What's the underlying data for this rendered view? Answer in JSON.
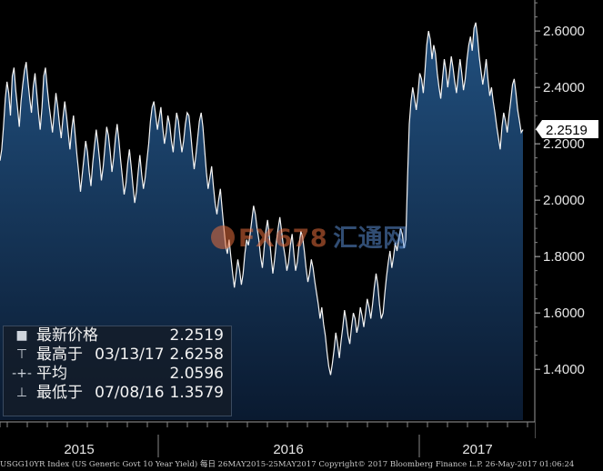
{
  "chart_data": {
    "type": "area",
    "title": "",
    "xlabel": "",
    "ylabel": "",
    "x_ticks": [
      "2015",
      "2016",
      "2017"
    ],
    "y_ticks": [
      "1.4000",
      "1.6000",
      "1.8000",
      "2.0000",
      "2.2000",
      "2.4000",
      "2.6000"
    ],
    "ylim": [
      1.22,
      2.71
    ],
    "last_value": "2.2519",
    "series": [
      {
        "values": [
          2.14,
          2.18,
          2.26,
          2.36,
          2.42,
          2.38,
          2.3,
          2.44,
          2.47,
          2.39,
          2.33,
          2.26,
          2.35,
          2.41,
          2.46,
          2.49,
          2.42,
          2.36,
          2.31,
          2.4,
          2.45,
          2.38,
          2.31,
          2.25,
          2.33,
          2.44,
          2.47,
          2.4,
          2.34,
          2.29,
          2.24,
          2.31,
          2.38,
          2.33,
          2.27,
          2.22,
          2.29,
          2.35,
          2.3,
          2.24,
          2.18,
          2.25,
          2.3,
          2.23,
          2.16,
          2.1,
          2.03,
          2.09,
          2.15,
          2.21,
          2.17,
          2.1,
          2.05,
          2.13,
          2.19,
          2.25,
          2.2,
          2.14,
          2.07,
          2.12,
          2.19,
          2.26,
          2.23,
          2.17,
          2.1,
          2.15,
          2.22,
          2.27,
          2.21,
          2.14,
          2.08,
          2.02,
          2.06,
          2.13,
          2.18,
          2.12,
          2.05,
          1.99,
          2.03,
          2.1,
          2.16,
          2.09,
          2.04,
          2.08,
          2.14,
          2.2,
          2.28,
          2.33,
          2.35,
          2.3,
          2.25,
          2.29,
          2.33,
          2.26,
          2.2,
          2.24,
          2.3,
          2.27,
          2.21,
          2.17,
          2.25,
          2.31,
          2.28,
          2.22,
          2.17,
          2.21,
          2.27,
          2.31,
          2.3,
          2.24,
          2.17,
          2.11,
          2.16,
          2.22,
          2.28,
          2.31,
          2.26,
          2.18,
          2.1,
          2.04,
          2.08,
          2.12,
          2.05,
          1.99,
          1.95,
          2.0,
          2.04,
          1.97,
          1.9,
          1.84,
          1.81,
          1.86,
          1.8,
          1.74,
          1.69,
          1.74,
          1.79,
          1.75,
          1.7,
          1.74,
          1.81,
          1.86,
          1.84,
          1.88,
          1.93,
          1.98,
          1.95,
          1.9,
          1.86,
          1.8,
          1.76,
          1.83,
          1.89,
          1.93,
          1.87,
          1.8,
          1.74,
          1.79,
          1.85,
          1.9,
          1.94,
          1.89,
          1.84,
          1.8,
          1.75,
          1.78,
          1.84,
          1.88,
          1.81,
          1.75,
          1.78,
          1.84,
          1.89,
          1.87,
          1.82,
          1.76,
          1.71,
          1.74,
          1.79,
          1.76,
          1.71,
          1.67,
          1.63,
          1.58,
          1.62,
          1.56,
          1.52,
          1.46,
          1.41,
          1.38,
          1.42,
          1.47,
          1.53,
          1.49,
          1.44,
          1.5,
          1.55,
          1.61,
          1.57,
          1.52,
          1.49,
          1.55,
          1.6,
          1.58,
          1.53,
          1.56,
          1.62,
          1.59,
          1.55,
          1.6,
          1.65,
          1.62,
          1.58,
          1.63,
          1.69,
          1.74,
          1.7,
          1.63,
          1.58,
          1.6,
          1.67,
          1.73,
          1.78,
          1.82,
          1.76,
          1.8,
          1.85,
          1.82,
          1.86,
          1.9,
          1.88,
          1.83,
          1.86,
          2.08,
          2.27,
          2.35,
          2.4,
          2.36,
          2.32,
          2.38,
          2.45,
          2.43,
          2.38,
          2.46,
          2.55,
          2.6,
          2.57,
          2.5,
          2.55,
          2.52,
          2.45,
          2.4,
          2.36,
          2.43,
          2.5,
          2.46,
          2.4,
          2.45,
          2.51,
          2.47,
          2.42,
          2.38,
          2.44,
          2.5,
          2.45,
          2.39,
          2.43,
          2.5,
          2.55,
          2.58,
          2.53,
          2.61,
          2.63,
          2.58,
          2.51,
          2.46,
          2.41,
          2.45,
          2.5,
          2.43,
          2.37,
          2.4,
          2.35,
          2.31,
          2.26,
          2.22,
          2.18,
          2.26,
          2.31,
          2.28,
          2.24,
          2.3,
          2.35,
          2.41,
          2.43,
          2.38,
          2.32,
          2.28,
          2.24,
          2.25
        ]
      }
    ]
  },
  "legend": {
    "rows": [
      {
        "mark": "■",
        "label": "最新价格",
        "date": "",
        "value": "2.2519"
      },
      {
        "mark": "⊤",
        "label": "最高于",
        "date": "03/13/17",
        "value": "2.6258"
      },
      {
        "mark": "-+-",
        "label": "平均",
        "date": "",
        "value": "2.0596"
      },
      {
        "mark": "⊥",
        "label": "最低于",
        "date": "07/08/16",
        "value": "1.3579"
      }
    ]
  },
  "watermark": {
    "text": "FX678",
    "cn": "汇通网"
  },
  "footer": "USGG10YR Index (US Generic Govt 10 Year Yield)  每日 26MAY2015-25MAY2017 Copyright© 2017 Bloomberg Finance L.P. 26-May-2017 01:06:24",
  "colors": {
    "background": "#000000",
    "area_top": "#1f4a77",
    "area_bottom": "#0a1a30",
    "line": "#f5f5f5",
    "tag": "#ffffff"
  }
}
